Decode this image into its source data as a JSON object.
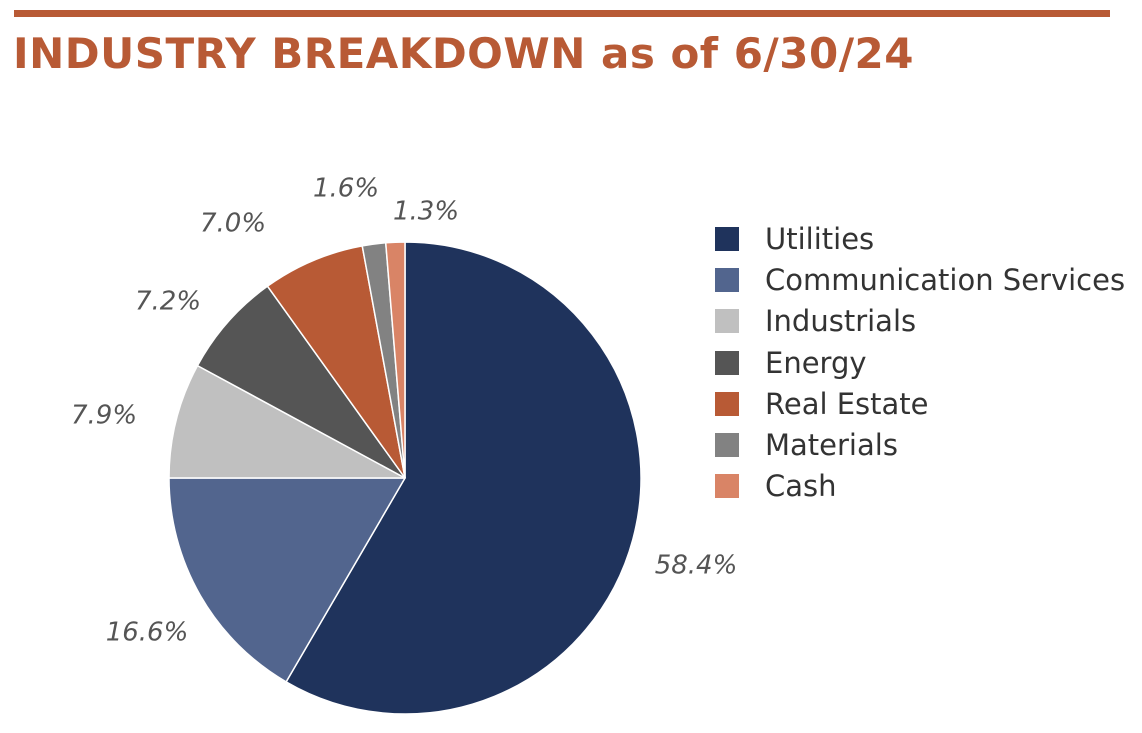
{
  "header": {
    "title": "INDUSTRY BREAKDOWN as of 6/30/24",
    "accent_color": "#b85a35"
  },
  "chart_data": {
    "type": "pie",
    "title": "INDUSTRY BREAKDOWN as of 6/30/24",
    "legend_position": "right",
    "start_angle": "12 o'clock",
    "direction": "clockwise",
    "slices": [
      {
        "name": "Utilities",
        "value": 58.4,
        "label": "58.4%",
        "color": "#1f335c"
      },
      {
        "name": "Communication Services",
        "value": 16.6,
        "label": "16.6%",
        "color": "#52658e"
      },
      {
        "name": "Industrials",
        "value": 7.9,
        "label": "7.9%",
        "color": "#c0c0c0"
      },
      {
        "name": "Energy",
        "value": 7.2,
        "label": "7.2%",
        "color": "#555555"
      },
      {
        "name": "Real Estate",
        "value": 7.0,
        "label": "7.0%",
        "color": "#b85a35"
      },
      {
        "name": "Materials",
        "value": 1.6,
        "label": "1.6%",
        "color": "#828282"
      },
      {
        "name": "Cash",
        "value": 1.3,
        "label": "1.3%",
        "color": "#d98466"
      }
    ]
  }
}
